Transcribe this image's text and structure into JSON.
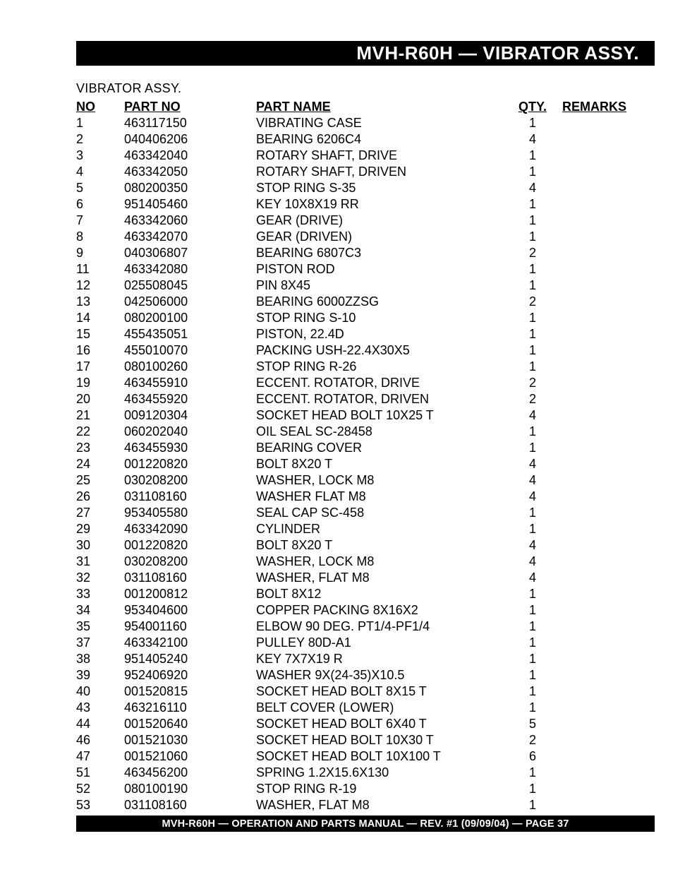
{
  "header": {
    "title": "MVH-R60H — VIBRATOR  ASSY."
  },
  "subtitle": "VIBRATOR ASSY.",
  "columns": {
    "no": "NO",
    "part_no": "PART NO",
    "part_name": "PART NAME",
    "qty": "QTY.",
    "remarks": "REMARKS"
  },
  "rows": [
    {
      "no": "1",
      "part_no": "463117150",
      "part_name": "VIBRATING CASE",
      "qty": "1",
      "remarks": ""
    },
    {
      "no": "2",
      "part_no": "040406206",
      "part_name": "BEARING 6206C4",
      "qty": "4",
      "remarks": ""
    },
    {
      "no": "3",
      "part_no": "463342040",
      "part_name": "ROTARY SHAFT, DRIVE",
      "qty": "1",
      "remarks": ""
    },
    {
      "no": "4",
      "part_no": "463342050",
      "part_name": "ROTARY SHAFT, DRIVEN",
      "qty": "1",
      "remarks": ""
    },
    {
      "no": "5",
      "part_no": "080200350",
      "part_name": "STOP RING S-35",
      "qty": "4",
      "remarks": ""
    },
    {
      "no": "6",
      "part_no": "951405460",
      "part_name": "KEY 10X8X19 RR",
      "qty": "1",
      "remarks": ""
    },
    {
      "no": "7",
      "part_no": "463342060",
      "part_name": "GEAR (DRIVE)",
      "qty": "1",
      "remarks": ""
    },
    {
      "no": "8",
      "part_no": "463342070",
      "part_name": "GEAR (DRIVEN)",
      "qty": "1",
      "remarks": ""
    },
    {
      "no": "9",
      "part_no": "040306807",
      "part_name": "BEARING 6807C3",
      "qty": "2",
      "remarks": ""
    },
    {
      "no": "11",
      "part_no": "463342080",
      "part_name": "PISTON ROD",
      "qty": "1",
      "remarks": ""
    },
    {
      "no": "12",
      "part_no": "025508045",
      "part_name": "PIN 8X45",
      "qty": "1",
      "remarks": ""
    },
    {
      "no": "13",
      "part_no": "042506000",
      "part_name": "BEARING 6000ZZSG",
      "qty": "2",
      "remarks": ""
    },
    {
      "no": "14",
      "part_no": "080200100",
      "part_name": "STOP RING S-10",
      "qty": "1",
      "remarks": ""
    },
    {
      "no": "15",
      "part_no": "455435051",
      "part_name": "PISTON, 22.4D",
      "qty": "1",
      "remarks": ""
    },
    {
      "no": "16",
      "part_no": "455010070",
      "part_name": "PACKING USH-22.4X30X5",
      "qty": "1",
      "remarks": ""
    },
    {
      "no": "17",
      "part_no": "080100260",
      "part_name": "STOP RING R-26",
      "qty": "1",
      "remarks": ""
    },
    {
      "no": "19",
      "part_no": "463455910",
      "part_name": "ECCENT. ROTATOR, DRIVE",
      "qty": "2",
      "remarks": ""
    },
    {
      "no": "20",
      "part_no": "463455920",
      "part_name": "ECCENT. ROTATOR, DRIVEN",
      "qty": "2",
      "remarks": ""
    },
    {
      "no": "21",
      "part_no": "009120304",
      "part_name": "SOCKET HEAD BOLT 10X25 T",
      "qty": "4",
      "remarks": ""
    },
    {
      "no": "22",
      "part_no": "060202040",
      "part_name": "OIL SEAL SC-28458",
      "qty": "1",
      "remarks": ""
    },
    {
      "no": "23",
      "part_no": "463455930",
      "part_name": "BEARING COVER",
      "qty": "1",
      "remarks": ""
    },
    {
      "no": "24",
      "part_no": "001220820",
      "part_name": "BOLT 8X20 T",
      "qty": "4",
      "remarks": ""
    },
    {
      "no": "25",
      "part_no": "030208200",
      "part_name": "WASHER, LOCK M8",
      "qty": "4",
      "remarks": ""
    },
    {
      "no": "26",
      "part_no": "031108160",
      "part_name": "WASHER FLAT M8",
      "qty": "4",
      "remarks": ""
    },
    {
      "no": "27",
      "part_no": "953405580",
      "part_name": "SEAL CAP SC-458",
      "qty": "1",
      "remarks": ""
    },
    {
      "no": "29",
      "part_no": "463342090",
      "part_name": "CYLINDER",
      "qty": "1",
      "remarks": ""
    },
    {
      "no": "30",
      "part_no": "001220820",
      "part_name": "BOLT 8X20  T",
      "qty": "4",
      "remarks": ""
    },
    {
      "no": "31",
      "part_no": "030208200",
      "part_name": "WASHER, LOCK M8",
      "qty": "4",
      "remarks": ""
    },
    {
      "no": "32",
      "part_no": "031108160",
      "part_name": "WASHER, FLAT M8",
      "qty": "4",
      "remarks": ""
    },
    {
      "no": "33",
      "part_no": "001200812",
      "part_name": "BOLT 8X12",
      "qty": "1",
      "remarks": ""
    },
    {
      "no": "34",
      "part_no": "953404600",
      "part_name": "COPPER PACKING 8X16X2",
      "qty": "1",
      "remarks": ""
    },
    {
      "no": "35",
      "part_no": "954001160",
      "part_name": "ELBOW 90 DEG. PT1/4-PF1/4",
      "qty": "1",
      "remarks": ""
    },
    {
      "no": "37",
      "part_no": "463342100",
      "part_name": "PULLEY 80D-A1",
      "qty": "1",
      "remarks": ""
    },
    {
      "no": "38",
      "part_no": "951405240",
      "part_name": "KEY 7X7X19 R",
      "qty": "1",
      "remarks": ""
    },
    {
      "no": "39",
      "part_no": "952406920",
      "part_name": "WASHER 9X(24-35)X10.5",
      "qty": "1",
      "remarks": ""
    },
    {
      "no": "40",
      "part_no": "001520815",
      "part_name": "SOCKET HEAD BOLT 8X15 T",
      "qty": "1",
      "remarks": ""
    },
    {
      "no": "43",
      "part_no": "463216110",
      "part_name": "BELT COVER (LOWER)",
      "qty": "1",
      "remarks": ""
    },
    {
      "no": "44",
      "part_no": "001520640",
      "part_name": "SOCKET HEAD BOLT 6X40 T",
      "qty": "5",
      "remarks": ""
    },
    {
      "no": "46",
      "part_no": "001521030",
      "part_name": "SOCKET HEAD BOLT 10X30 T",
      "qty": "2",
      "remarks": ""
    },
    {
      "no": "47",
      "part_no": "001521060",
      "part_name": "SOCKET HEAD BOLT 10X100 T",
      "qty": "6",
      "remarks": ""
    },
    {
      "no": "51",
      "part_no": "463456200",
      "part_name": "SPRING 1.2X15.6X130",
      "qty": "1",
      "remarks": ""
    },
    {
      "no": "52",
      "part_no": "080100190",
      "part_name": "STOP RING R-19",
      "qty": "1",
      "remarks": ""
    },
    {
      "no": "53",
      "part_no": "031108160",
      "part_name": "WASHER, FLAT M8",
      "qty": "1",
      "remarks": ""
    }
  ],
  "footer": {
    "text": "MVH-R60H — OPERATION AND PARTS MANUAL — REV. #1 (09/09/04) — PAGE 37"
  }
}
